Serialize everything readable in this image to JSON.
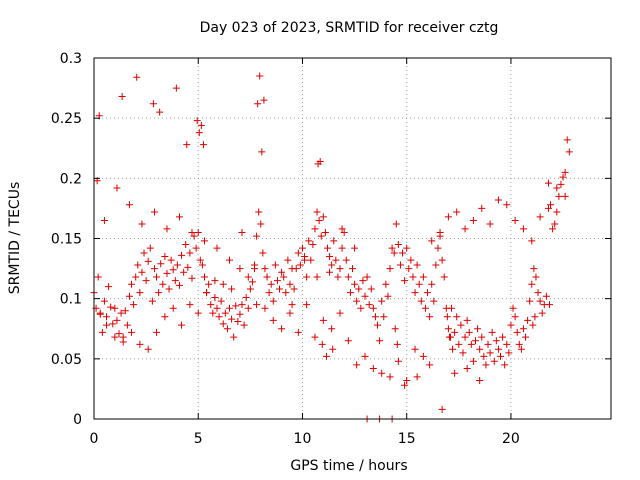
{
  "chart_data": {
    "type": "scatter",
    "title": "Day 023 of 2023, SRMTID for receiver cztg",
    "xlabel": "GPS time / hours",
    "ylabel": "SRMTID / TECUs",
    "xlim": [
      0,
      24.8
    ],
    "ylim": [
      0,
      0.3
    ],
    "x_ticks": [
      0,
      5,
      10,
      15,
      20
    ],
    "y_ticks": [
      0,
      0.05,
      0.1,
      0.15,
      0.2,
      0.25,
      0.3
    ],
    "x_tick_labels": [
      "0",
      "5",
      "10",
      "15",
      "20"
    ],
    "y_tick_labels": [
      "0",
      "0.05",
      "0.1",
      "0.15",
      "0.2",
      "0.25",
      "0.3"
    ],
    "grid": true,
    "marker": "plus",
    "color": "#dd0000",
    "points_x": [
      0.0,
      0.1,
      0.2,
      0.3,
      0.4,
      0.5,
      0.6,
      0.7,
      0.8,
      0.9,
      1.0,
      1.1,
      1.2,
      1.3,
      1.4,
      1.5,
      1.6,
      1.7,
      1.8,
      1.9,
      2.0,
      2.1,
      2.2,
      2.3,
      2.4,
      2.5,
      2.6,
      2.7,
      2.8,
      2.9,
      3.0,
      3.1,
      3.2,
      3.3,
      3.4,
      3.5,
      3.6,
      3.7,
      3.8,
      3.9,
      4.0,
      4.1,
      4.2,
      4.3,
      4.4,
      4.5,
      4.6,
      4.7,
      4.8,
      4.9,
      5.0,
      5.1,
      5.2,
      5.3,
      5.4,
      5.5,
      5.6,
      5.7,
      5.8,
      5.9,
      6.0,
      6.1,
      6.2,
      6.3,
      6.4,
      6.5,
      6.6,
      6.7,
      6.8,
      6.9,
      7.0,
      7.1,
      7.2,
      7.3,
      7.4,
      7.5,
      7.6,
      7.7,
      7.8,
      7.9,
      8.0,
      8.1,
      8.2,
      8.3,
      8.4,
      8.5,
      8.6,
      8.7,
      8.8,
      8.9,
      9.0,
      9.1,
      9.2,
      9.3,
      9.4,
      9.5,
      9.6,
      9.7,
      9.8,
      9.9,
      10.0,
      10.1,
      10.2,
      10.3,
      10.4,
      10.5,
      10.6,
      10.7,
      10.8,
      10.9,
      11.0,
      11.1,
      11.2,
      11.3,
      11.4,
      11.5,
      11.6,
      11.7,
      11.8,
      11.9,
      12.0,
      12.1,
      12.2,
      12.3,
      12.4,
      12.5,
      12.6,
      12.7,
      12.8,
      12.9,
      13.0,
      13.1,
      13.2,
      13.3,
      13.4,
      13.5,
      13.6,
      13.7,
      13.8,
      13.9,
      14.0,
      14.1,
      14.2,
      14.3,
      14.4,
      14.5,
      14.6,
      14.7,
      14.8,
      14.9,
      15.0,
      15.1,
      15.2,
      15.3,
      15.4,
      15.5,
      15.6,
      15.7,
      15.8,
      15.9,
      16.0,
      16.1,
      16.2,
      16.3,
      16.4,
      16.5,
      16.6,
      16.7,
      16.8,
      16.9,
      17.0,
      17.1,
      17.2,
      17.3,
      17.4,
      17.5,
      17.6,
      17.7,
      17.8,
      17.9,
      18.0,
      18.1,
      18.2,
      18.3,
      18.4,
      18.5,
      18.6,
      18.7,
      18.8,
      18.9,
      19.0,
      19.1,
      19.2,
      19.3,
      19.4,
      19.5,
      19.6,
      19.7,
      19.8,
      19.9,
      20.0,
      20.1,
      20.2,
      20.3,
      20.4,
      20.5,
      20.6,
      20.7,
      20.8,
      20.9,
      21.0,
      21.1,
      21.2,
      21.3,
      21.4,
      21.5,
      21.6,
      21.7,
      21.8,
      21.9,
      22.0,
      22.1,
      22.2,
      22.3,
      22.4,
      22.5,
      22.6,
      22.7,
      22.8,
      0.15,
      0.25,
      1.35,
      2.05,
      2.85,
      3.15,
      3.95,
      4.45,
      4.95,
      5.05,
      5.15,
      5.25,
      7.85,
      7.95,
      8.05,
      8.15,
      10.75,
      10.85,
      10.95,
      11.15,
      11.45,
      14.45,
      14.55,
      16.95,
      17.05,
      17.15,
      21.05,
      21.15,
      21.85,
      0.3,
      0.6,
      1.0,
      1.4,
      1.8,
      2.2,
      2.6,
      3.0,
      3.4,
      3.8,
      4.2,
      4.6,
      5.0,
      5.4,
      5.8,
      6.2,
      6.6,
      7.0,
      7.4,
      7.8,
      8.2,
      8.6,
      9.0,
      9.4,
      9.8,
      10.2,
      10.6,
      11.0,
      11.4,
      11.8,
      12.2,
      12.6,
      13.0,
      13.4,
      13.8,
      14.2,
      14.6,
      15.0,
      15.4,
      15.8,
      16.2,
      16.6,
      17.0,
      17.4,
      17.8,
      18.2,
      18.6,
      19.0,
      19.4,
      19.8,
      20.2,
      20.6,
      21.0,
      21.4,
      21.8,
      22.2,
      22.6,
      0.5,
      1.1,
      1.7,
      2.3,
      2.9,
      3.5,
      4.1,
      4.7,
      5.3,
      5.9,
      6.5,
      7.1,
      7.7,
      8.3,
      8.9,
      9.5,
      10.1,
      10.7,
      11.3,
      11.9,
      12.5,
      13.1,
      13.7,
      14.3,
      14.9,
      15.5,
      16.1,
      16.7,
      17.3,
      17.9,
      18.5,
      19.1,
      19.7,
      20.3,
      20.9,
      21.5,
      22.1,
      22.7,
      6.9,
      9.4,
      14.2,
      6.5,
      13.4,
      13.5,
      21.2,
      20.0,
      20.6,
      21.0
    ],
    "points_y": [
      0.105,
      0.092,
      0.118,
      0.087,
      0.072,
      0.098,
      0.085,
      0.11,
      0.093,
      0.079,
      0.068,
      0.082,
      0.071,
      0.088,
      0.064,
      0.09,
      0.078,
      0.102,
      0.112,
      0.095,
      0.118,
      0.128,
      0.105,
      0.122,
      0.138,
      0.115,
      0.131,
      0.142,
      0.098,
      0.125,
      0.118,
      0.105,
      0.129,
      0.112,
      0.135,
      0.121,
      0.108,
      0.132,
      0.124,
      0.115,
      0.128,
      0.111,
      0.136,
      0.122,
      0.145,
      0.126,
      0.138,
      0.117,
      0.152,
      0.142,
      0.155,
      0.132,
      0.128,
      0.118,
      0.105,
      0.112,
      0.095,
      0.088,
      0.101,
      0.092,
      0.085,
      0.098,
      0.079,
      0.088,
      0.075,
      0.092,
      0.083,
      0.068,
      0.094,
      0.081,
      0.087,
      0.095,
      0.078,
      0.101,
      0.092,
      0.108,
      0.114,
      0.125,
      0.152,
      0.172,
      0.162,
      0.138,
      0.125,
      0.118,
      0.105,
      0.112,
      0.098,
      0.128,
      0.115,
      0.108,
      0.122,
      0.118,
      0.105,
      0.132,
      0.112,
      0.095,
      0.108,
      0.125,
      0.138,
      0.128,
      0.142,
      0.135,
      0.118,
      0.148,
      0.132,
      0.145,
      0.158,
      0.172,
      0.165,
      0.152,
      0.168,
      0.155,
      0.142,
      0.135,
      0.128,
      0.148,
      0.132,
      0.118,
      0.125,
      0.142,
      0.155,
      0.132,
      0.118,
      0.105,
      0.125,
      0.112,
      0.098,
      0.108,
      0.092,
      0.115,
      0.102,
      0.118,
      0.095,
      0.108,
      0.092,
      0.085,
      0.078,
      0.065,
      0.098,
      0.085,
      0.112,
      0.102,
      0.125,
      0.142,
      0.138,
      0.162,
      0.145,
      0.128,
      0.138,
      0.115,
      0.142,
      0.125,
      0.132,
      0.118,
      0.105,
      0.128,
      0.112,
      0.098,
      0.118,
      0.092,
      0.105,
      0.085,
      0.112,
      0.098,
      0.128,
      0.142,
      0.155,
      0.132,
      0.118,
      0.092,
      0.075,
      0.068,
      0.058,
      0.072,
      0.085,
      0.062,
      0.078,
      0.055,
      0.068,
      0.082,
      0.072,
      0.062,
      0.048,
      0.065,
      0.075,
      0.058,
      0.068,
      0.052,
      0.045,
      0.062,
      0.055,
      0.072,
      0.048,
      0.065,
      0.058,
      0.052,
      0.068,
      0.045,
      0.062,
      0.055,
      0.078,
      0.092,
      0.085,
      0.072,
      0.062,
      0.058,
      0.075,
      0.068,
      0.082,
      0.098,
      0.112,
      0.125,
      0.118,
      0.105,
      0.098,
      0.088,
      0.095,
      0.102,
      0.196,
      0.178,
      0.158,
      0.162,
      0.192,
      0.185,
      0.195,
      0.201,
      0.205,
      0.232,
      0.222,
      0.198,
      0.252,
      0.268,
      0.284,
      0.262,
      0.255,
      0.275,
      0.228,
      0.248,
      0.238,
      0.244,
      0.228,
      0.262,
      0.285,
      0.222,
      0.265,
      0.212,
      0.214,
      0.062,
      0.052,
      0.058,
      0.075,
      0.062,
      0.085,
      0.068,
      0.092,
      0.078,
      0.085,
      0.095,
      0.088,
      0.078,
      0.092,
      0.068,
      0.072,
      0.062,
      0.058,
      0.072,
      0.085,
      0.092,
      0.078,
      0.095,
      0.088,
      0.105,
      0.115,
      0.112,
      0.108,
      0.125,
      0.118,
      0.095,
      0.092,
      0.082,
      0.075,
      0.088,
      0.072,
      0.095,
      0.068,
      0.082,
      0.075,
      0.088,
      0.065,
      0.045,
      0.052,
      0.042,
      0.038,
      0.035,
      0.048,
      0.032,
      0.058,
      0.052,
      0.148,
      0.152,
      0.168,
      0.172,
      0.158,
      0.165,
      0.175,
      0.162,
      0.182,
      0.178,
      0.165,
      0.158,
      0.148,
      0.168,
      0.175,
      0.172,
      0.185,
      0.165,
      0.192,
      0.178,
      0.162,
      0.172,
      0.158,
      0.168,
      0.155,
      0.148,
      0.142,
      0.132,
      0.155,
      0.128,
      0.118,
      0.108,
      0.125,
      0.132,
      0.118,
      0.122,
      0.158,
      0.142,
      0.0,
      0.0,
      0.0,
      0.028,
      0.035,
      0.045,
      0.008,
      0.038,
      0.042,
      0.032
    ]
  }
}
